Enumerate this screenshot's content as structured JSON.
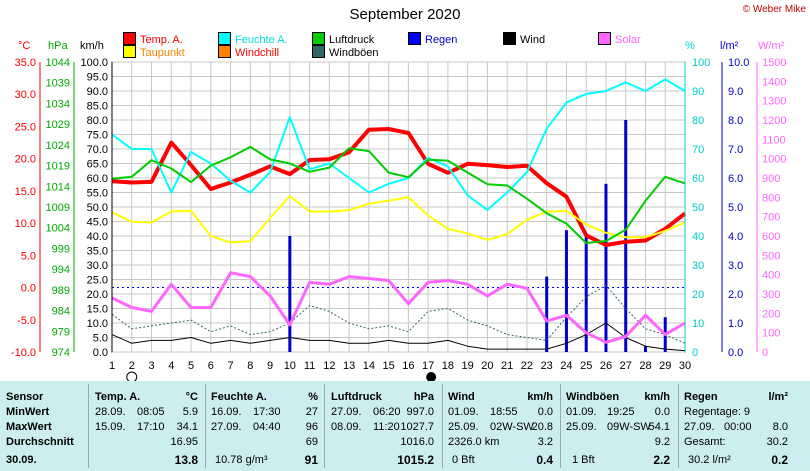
{
  "chart_data": {
    "type": "line",
    "title": "September 2020",
    "credit": "© Weber Mike",
    "x": [
      1,
      2,
      3,
      4,
      5,
      6,
      7,
      8,
      9,
      10,
      11,
      12,
      13,
      14,
      15,
      16,
      17,
      18,
      19,
      20,
      21,
      22,
      23,
      24,
      25,
      26,
      27,
      28,
      29,
      30
    ],
    "xlim": [
      1,
      30
    ],
    "axes": {
      "temp_c": {
        "label": "°C",
        "min": -10,
        "max": 35,
        "ticks": [
          "35.0",
          "30.0",
          "25.0",
          "20.0",
          "15.0",
          "10.0",
          "5.0",
          "0.0",
          "-5.0",
          "-10.0"
        ],
        "color": "#ff0000"
      },
      "pressure_hpa": {
        "label": "hPa",
        "min": 974,
        "max": 1044,
        "ticks": [
          "1044",
          "1039",
          "1034",
          "1029",
          "1024",
          "1019",
          "1014",
          "1009",
          "1004",
          "999",
          "994",
          "989",
          "984",
          "979",
          "974"
        ],
        "color": "#00aa00"
      },
      "wind_kmh": {
        "label": "km/h",
        "min": 0,
        "max": 100,
        "ticks": [
          "100.0",
          "95.0",
          "90.0",
          "85.0",
          "80.0",
          "75.0",
          "70.0",
          "65.0",
          "60.0",
          "55.0",
          "50.0",
          "45.0",
          "40.0",
          "35.0",
          "30.0",
          "25.0",
          "20.0",
          "15.0",
          "10.0",
          "5.0",
          "0.0"
        ],
        "color": "#000000"
      },
      "humidity_pct": {
        "label": "%",
        "min": 0,
        "max": 100,
        "ticks": [
          "100",
          "90",
          "80",
          "70",
          "60",
          "50",
          "40",
          "30",
          "20",
          "10",
          "0"
        ],
        "color": "#00dddd"
      },
      "rain_lm2": {
        "label": "l/m²",
        "min": 0,
        "max": 10,
        "ticks": [
          "10.0",
          "9.0",
          "8.0",
          "7.0",
          "6.0",
          "5.0",
          "4.0",
          "3.0",
          "2.0",
          "1.0",
          "0.0"
        ],
        "color": "#0000cc"
      },
      "solar_wm2": {
        "label": "W/m²",
        "min": 0,
        "max": 1500,
        "ticks": [
          "1500",
          "1400",
          "1300",
          "1200",
          "1100",
          "1000",
          "900",
          "800",
          "700",
          "600",
          "500",
          "400",
          "300",
          "200",
          "100",
          "0"
        ],
        "color": "#ff66ff"
      }
    },
    "legend": [
      {
        "name": "Temp. A.",
        "color": "#ff0000"
      },
      {
        "name": "Feuchte A.",
        "color": "#00ffff"
      },
      {
        "name": "Luftdruck",
        "color": "#00cc00"
      },
      {
        "name": "Regen",
        "color": "#0000ff"
      },
      {
        "name": "Wind",
        "color": "#000000"
      },
      {
        "name": "Solar",
        "color": "#ff66ff"
      },
      {
        "name": "Taupunkt",
        "color": "#ffff00"
      },
      {
        "name": "Windchill",
        "color": "#ff8000"
      },
      {
        "name": "Windböen",
        "color": "#336666"
      }
    ],
    "series": [
      {
        "name": "Temp. A.",
        "axis": "temp_c",
        "color": "#ff0000",
        "values": [
          16.5,
          16.3,
          16.4,
          22.5,
          19.0,
          15.3,
          16.3,
          17.5,
          18.8,
          17.6,
          19.8,
          19.9,
          21.0,
          24.5,
          24.6,
          24.0,
          19.2,
          17.8,
          19.2,
          19.0,
          18.7,
          18.9,
          16.2,
          14.1,
          8.1,
          6.6,
          7.1,
          7.3,
          9.1,
          11.5
        ],
        "width": 4
      },
      {
        "name": "Taupunkt",
        "axis": "temp_c",
        "color": "#ffff00",
        "values": [
          11.7,
          10.2,
          10.1,
          11.8,
          11.9,
          8.0,
          7.0,
          7.2,
          10.8,
          14.2,
          11.8,
          11.8,
          12.0,
          13.0,
          13.5,
          14.0,
          11.2,
          9.1,
          8.4,
          7.4,
          8.3,
          10.5,
          11.8,
          11.9,
          9.8,
          8.5,
          7.8,
          7.8,
          8.8,
          10.1
        ],
        "width": 2
      },
      {
        "name": "Feuchte A.",
        "axis": "humidity_pct",
        "color": "#00ffff",
        "values": [
          75,
          70,
          70,
          55,
          69,
          65,
          59,
          55,
          62,
          81,
          63,
          65,
          60,
          55,
          58,
          60,
          67,
          64,
          54,
          49,
          55,
          62,
          77,
          86,
          89,
          90,
          93,
          90,
          94,
          90
        ],
        "width": 2
      },
      {
        "name": "Luftdruck",
        "axis": "pressure_hpa",
        "color": "#00cc00",
        "values": [
          1015.8,
          1016.3,
          1020.3,
          1018.3,
          1015.0,
          1019.0,
          1021.0,
          1023.5,
          1020.5,
          1019.5,
          1017.5,
          1018.5,
          1023.2,
          1022.5,
          1017.3,
          1016.2,
          1020.4,
          1020.2,
          1017.3,
          1014.5,
          1014.2,
          1011.0,
          1007.5,
          1005.0,
          1000.3,
          1000.8,
          1003.5,
          1010.5,
          1016.3,
          1014.7
        ],
        "width": 2
      },
      {
        "name": "Windböen",
        "axis": "wind_kmh",
        "color": "#336666",
        "values": [
          13,
          8,
          9,
          10,
          11,
          7,
          9,
          6,
          7,
          10,
          16,
          14,
          10,
          8,
          9,
          7,
          14,
          15,
          11,
          9,
          6,
          5,
          4,
          12,
          19,
          23,
          15,
          8,
          6,
          3
        ],
        "width": 1,
        "dash": "2,2"
      },
      {
        "name": "Wind",
        "axis": "wind_kmh",
        "color": "#000000",
        "values": [
          6,
          3,
          4,
          4,
          5,
          3,
          4,
          3,
          4,
          5,
          4,
          4,
          3,
          3,
          4,
          3,
          3,
          4,
          2,
          1,
          1,
          1,
          1,
          3,
          6,
          10,
          5,
          2,
          1,
          0.5
        ],
        "width": 1
      },
      {
        "name": "Solar",
        "axis": "solar_wm2",
        "color": "#ff66ff",
        "values": [
          280,
          230,
          210,
          350,
          230,
          230,
          410,
          390,
          290,
          140,
          360,
          350,
          390,
          380,
          370,
          250,
          360,
          370,
          350,
          290,
          350,
          330,
          160,
          190,
          100,
          50,
          80,
          190,
          90,
          150
        ],
        "width": 3
      }
    ],
    "bars": {
      "name": "Regen",
      "axis": "rain_lm2",
      "color": "#0000cc",
      "x": [
        10,
        23,
        24,
        25,
        26,
        27,
        28,
        29
      ],
      "values": [
        4.0,
        2.6,
        4.2,
        4.1,
        5.8,
        8.0,
        0.2,
        1.2
      ]
    },
    "reference_line": {
      "axis": "temp_c",
      "value": 0.0,
      "color": "#0000ff"
    },
    "moon_markers": {
      "new_moon_day": "2",
      "full_moon_day": "17"
    },
    "grid": true
  },
  "stats": {
    "sensor": {
      "header": "Sensor",
      "rows": [
        "MinWert",
        "MaxWert",
        "Durchschnitt"
      ],
      "date": "30.09."
    },
    "temp": {
      "header": "Temp. A.",
      "unit": "°C",
      "min": {
        "date": "28.09.",
        "time": "08:05",
        "val": "5.9"
      },
      "max": {
        "date": "15.09.",
        "time": "17:10",
        "val": "34.1"
      },
      "avg": "16.95",
      "current": "13.8"
    },
    "humidity": {
      "header": "Feuchte A.",
      "unit": "%",
      "min": {
        "date": "16.09.",
        "time": "17:30",
        "val": "27"
      },
      "max": {
        "date": "27.09.",
        "time": "04:40",
        "val": "96"
      },
      "avg": "69",
      "abs": "10.78 g/m³",
      "current": "91"
    },
    "pressure": {
      "header": "Luftdruck",
      "unit": "hPa",
      "min": {
        "date": "27.09.",
        "time": "06:20",
        "val": "997.0"
      },
      "max": {
        "date": "08.09.",
        "time": "11:20",
        "val": "1027.7"
      },
      "avg": "1016.0",
      "current": "1015.2"
    },
    "wind": {
      "header": "Wind",
      "unit": "km/h",
      "min": {
        "date": "01.09.",
        "time": "18:55",
        "val": "0.0"
      },
      "max": {
        "date": "25.09.",
        "time": "02W-SW",
        "val": "20.8"
      },
      "dist": "2326.0 km",
      "avg": "3.2",
      "bft": "0 Bft",
      "current": "0.4"
    },
    "gust": {
      "header": "Windböen",
      "unit": "km/h",
      "min": {
        "date": "01.09.",
        "time": "19:25",
        "val": "0.0"
      },
      "max": {
        "date": "25.09.",
        "time": "09W-SW",
        "val": "54.1"
      },
      "avg": "9.2",
      "bft": "1 Bft",
      "current": "2.2"
    },
    "rain": {
      "header": "Regen",
      "unit": "l/m²",
      "days": "Regentage: 9",
      "max": {
        "date": "27.09.",
        "time": "00:00",
        "val": "8.0"
      },
      "total_label": "Gesamt:",
      "total": "30.2",
      "current_label": "30.2 l/m²",
      "current": "0.2"
    }
  }
}
